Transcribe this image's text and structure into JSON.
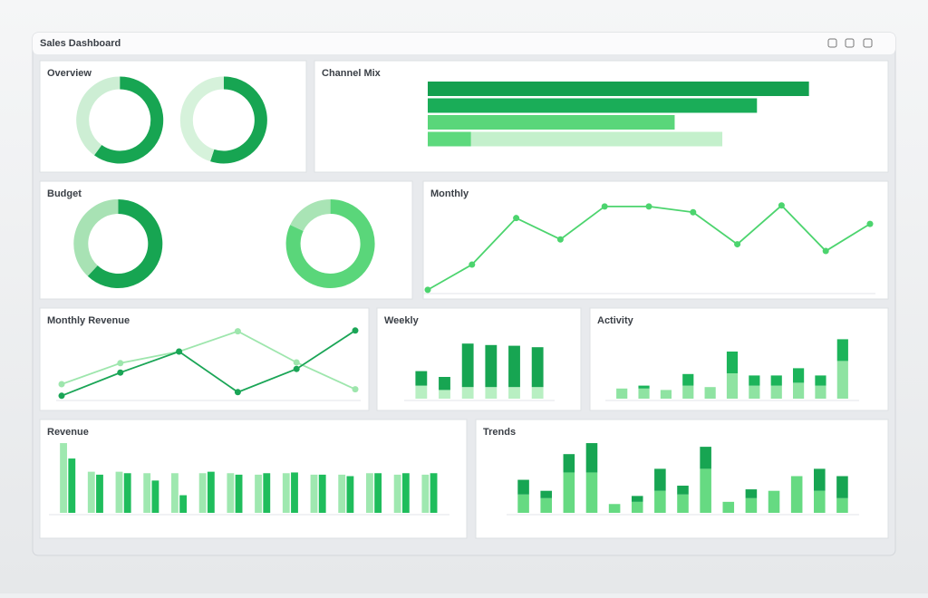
{
  "header": {
    "title": "Sales Dashboard"
  },
  "chart_data": [
    {
      "type": "donut",
      "title": "Overview",
      "series": [
        {
          "values": [
            60,
            40
          ],
          "colors": [
            "#17a552",
            "#cdeed4"
          ]
        },
        {
          "values": [
            55,
            45
          ],
          "colors": [
            "#17a552",
            "#d6f2db"
          ]
        }
      ]
    },
    {
      "type": "hbar",
      "title": "Channel Mix",
      "xlim": [
        0,
        100
      ],
      "series": [
        {
          "values": [
            88,
            76,
            57,
            10
          ],
          "colors": [
            "#14a04f",
            "#1aad58",
            "#5ad67a",
            "#5dd97d"
          ]
        },
        {
          "values": [
            0,
            0,
            0,
            58
          ],
          "colors": [
            "#c4f0cc",
            "#c4f0cc",
            "#c4f0cc",
            "#c4f0cc"
          ]
        }
      ]
    },
    {
      "type": "donut",
      "title": "Budget",
      "series": [
        {
          "values": [
            62,
            38
          ],
          "colors": [
            "#17a552",
            "#a8e2b4"
          ]
        },
        {
          "values": [
            82,
            18
          ],
          "colors": [
            "#5ad67a",
            "#a9e4b5"
          ]
        }
      ]
    },
    {
      "type": "line",
      "title": "Monthly",
      "ylim": [
        0,
        100
      ],
      "series": [
        {
          "color": "#4cd46e",
          "values": [
            2,
            28,
            76,
            54,
            88,
            88,
            82,
            49,
            89,
            42,
            70
          ]
        }
      ]
    },
    {
      "type": "line",
      "title": "Monthly Revenue",
      "ylim": [
        0,
        100
      ],
      "series": [
        {
          "color": "#9ee6ad",
          "values": [
            20,
            49,
            65,
            93,
            50,
            13
          ]
        },
        {
          "color": "#1aa556",
          "values": [
            4,
            36,
            65,
            9,
            41,
            94
          ]
        }
      ]
    },
    {
      "type": "bar",
      "title": "Weekly",
      "stacked": true,
      "ylim": [
        0,
        100
      ],
      "series": [
        {
          "color": "#b8efc2",
          "values": [
            18,
            12,
            16,
            16,
            16,
            16
          ]
        },
        {
          "color": "#17a552",
          "values": [
            20,
            18,
            60,
            58,
            57,
            55
          ]
        }
      ]
    },
    {
      "type": "bar",
      "title": "Activity",
      "stacked": true,
      "ylim": [
        0,
        100
      ],
      "series": [
        {
          "color": "#8fe3a2",
          "values": [
            14,
            14,
            12,
            18,
            16,
            35,
            18,
            18,
            22,
            18,
            52
          ]
        },
        {
          "color": "#1cb45a",
          "values": [
            0,
            4,
            0,
            16,
            0,
            30,
            14,
            14,
            20,
            14,
            30
          ]
        }
      ]
    },
    {
      "type": "bar",
      "title": "Revenue",
      "stacked": false,
      "ylim": [
        0,
        100
      ],
      "series": [
        {
          "color": "#9fe8b0",
          "values": [
            95,
            56,
            56,
            54,
            54,
            54,
            54,
            52,
            54,
            52,
            52,
            54,
            52,
            52
          ]
        },
        {
          "color": "#1fbd5c",
          "values": [
            74,
            52,
            54,
            44,
            24,
            56,
            52,
            54,
            55,
            52,
            50,
            54,
            54,
            54
          ]
        }
      ]
    },
    {
      "type": "bar",
      "title": "Trends",
      "stacked": true,
      "ylim": [
        0,
        100
      ],
      "series": [
        {
          "color": "#66da82",
          "values": [
            25,
            20,
            55,
            55,
            12,
            15,
            30,
            25,
            60,
            15,
            20,
            30,
            50,
            30,
            20
          ]
        },
        {
          "color": "#17a552",
          "values": [
            20,
            10,
            25,
            40,
            0,
            8,
            30,
            12,
            30,
            0,
            12,
            0,
            0,
            30,
            30
          ]
        }
      ]
    }
  ]
}
